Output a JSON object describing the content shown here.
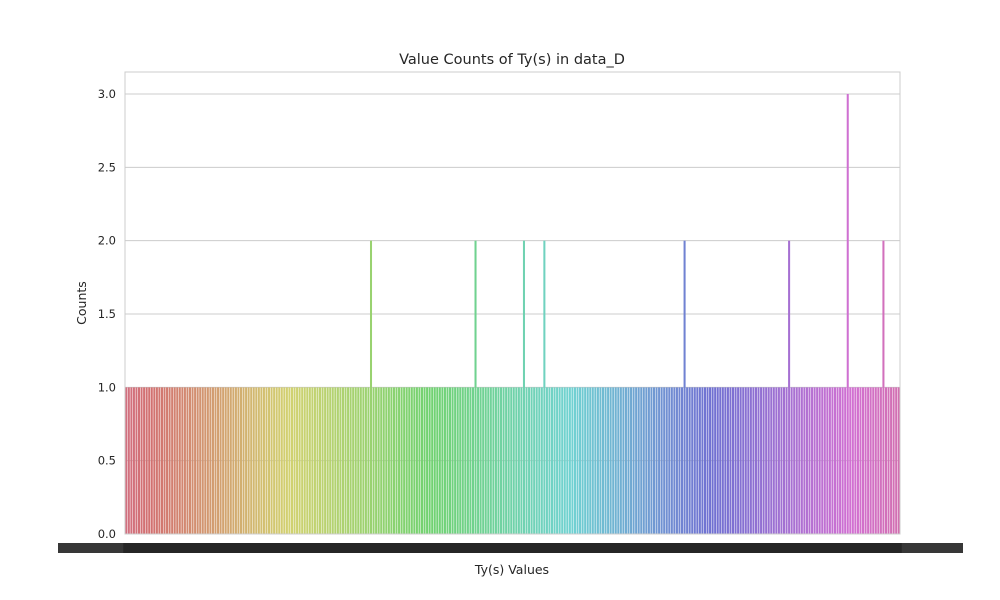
{
  "chart_data": {
    "type": "bar",
    "title": "Value Counts of Ty(s) in data_D",
    "xlabel": "Ty(s) Values",
    "ylabel": "Counts",
    "ylim": [
      0,
      3.15
    ],
    "yticks": [
      "0.0",
      "0.5",
      "1.0",
      "1.5",
      "2.0",
      "2.5",
      "3.0"
    ],
    "grid": true,
    "legend": "none",
    "palette": "husl",
    "categories_note": "",
    "values": [
      1,
      1,
      1,
      1,
      1,
      1,
      1,
      1,
      1,
      1,
      1,
      1,
      1,
      1,
      1,
      1,
      1,
      1,
      1,
      1,
      1,
      1,
      1,
      1,
      1,
      1,
      1,
      1,
      1,
      1,
      1,
      1,
      1,
      1,
      1,
      1,
      1,
      1,
      1,
      1,
      1,
      1,
      1,
      1,
      1,
      1,
      1,
      1,
      1,
      1,
      1,
      1,
      1,
      1,
      1,
      1,
      1,
      1,
      1,
      1,
      1,
      1,
      1,
      1,
      1,
      1,
      1,
      1,
      1,
      1,
      1,
      1,
      1,
      1,
      1,
      1,
      1,
      1,
      1,
      1,
      1,
      1,
      1,
      1,
      1,
      1,
      1,
      1,
      1,
      1,
      1,
      1,
      1,
      1,
      1,
      1,
      2,
      1,
      1,
      1,
      1,
      1,
      1,
      1,
      1,
      1,
      1,
      1,
      1,
      1,
      1,
      1,
      1,
      1,
      1,
      1,
      1,
      1,
      1,
      1,
      1,
      1,
      1,
      1,
      1,
      1,
      1,
      1,
      1,
      1,
      1,
      1,
      1,
      1,
      1,
      1,
      1,
      2,
      1,
      1,
      1,
      1,
      1,
      1,
      1,
      1,
      1,
      1,
      1,
      1,
      1,
      1,
      1,
      1,
      1,
      1,
      2,
      1,
      1,
      1,
      1,
      1,
      1,
      1,
      2,
      1,
      1,
      1,
      1,
      1,
      1,
      1,
      1,
      1,
      1,
      1,
      1,
      1,
      1,
      1,
      1,
      1,
      1,
      1,
      1,
      1,
      1,
      1,
      1,
      1,
      1,
      1,
      1,
      1,
      1,
      1,
      1,
      1,
      1,
      1,
      1,
      1,
      1,
      1,
      1,
      1,
      1,
      1,
      1,
      1,
      1,
      1,
      1,
      1,
      1,
      1,
      1,
      1,
      1,
      2,
      1,
      1,
      1,
      1,
      1,
      1,
      1,
      1,
      1,
      1,
      1,
      1,
      1,
      1,
      1,
      1,
      1,
      1,
      1,
      1,
      1,
      1,
      1,
      1,
      1,
      1,
      1,
      1,
      1,
      1,
      1,
      1,
      1,
      1,
      1,
      1,
      1,
      1,
      1,
      1,
      2,
      1,
      1,
      1,
      1,
      1,
      1,
      1,
      1,
      1,
      1,
      1,
      1,
      1,
      1,
      1,
      1,
      1,
      1,
      1,
      1,
      1,
      1,
      3,
      1,
      1,
      1,
      1,
      1,
      1,
      1,
      1,
      1,
      1,
      1,
      1,
      1,
      2,
      1,
      1,
      1,
      1,
      1,
      1
    ]
  }
}
